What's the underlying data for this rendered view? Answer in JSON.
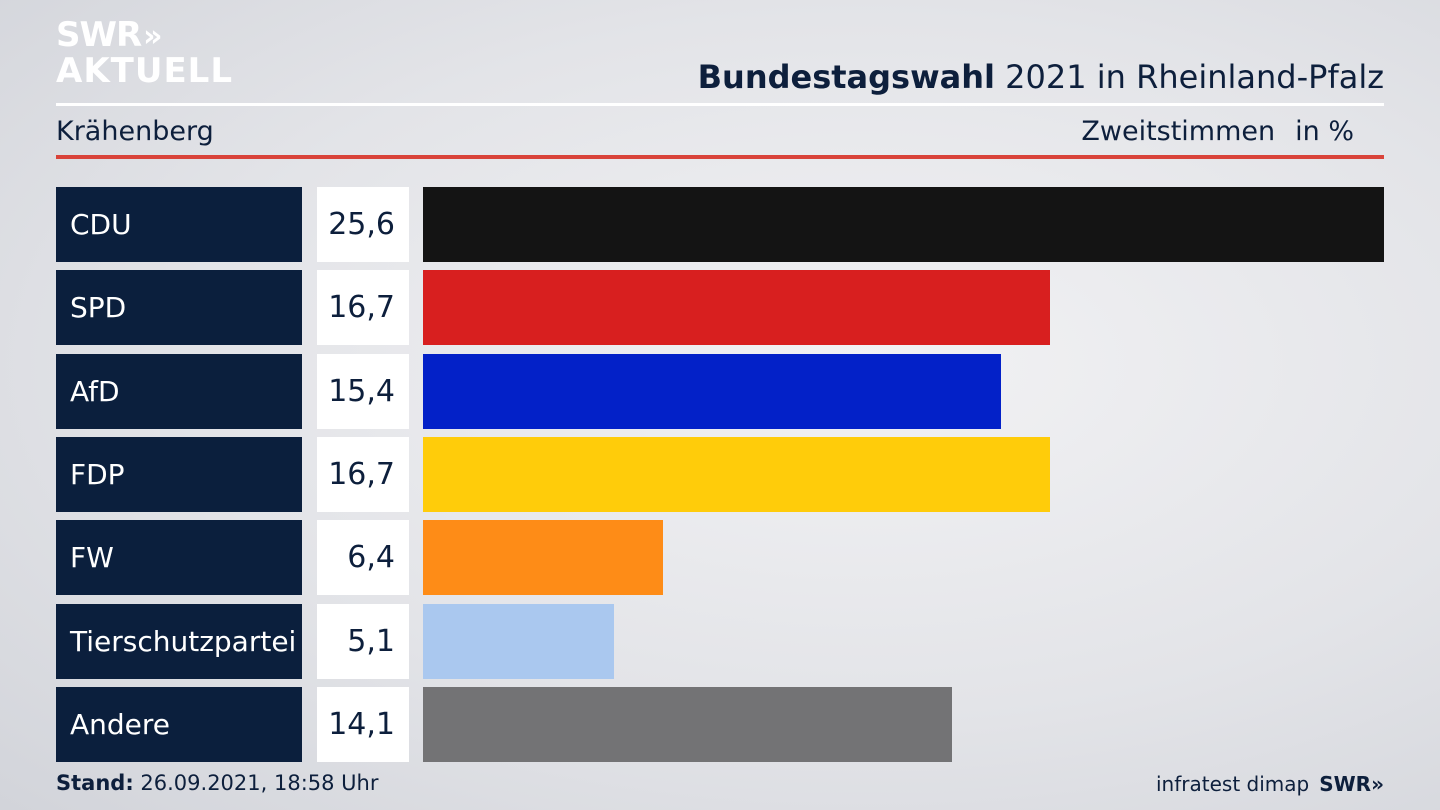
{
  "brand": {
    "logo_line1": "SWR",
    "logo_arrows": "»",
    "logo_line2": "AKTUELL",
    "footer_logo": "SWR»"
  },
  "header": {
    "title_bold": "Bundestagswahl",
    "title_rest": " 2021 in Rheinland-Pfalz",
    "location": "Krähenberg",
    "measure": "Zweitstimmen",
    "unit": "in %"
  },
  "footer": {
    "stand_label": "Stand:",
    "stand_value": " 26.09.2021, 18:58 Uhr",
    "source": "infratest dimap"
  },
  "chart_data": {
    "type": "bar",
    "orientation": "horizontal",
    "title": "Bundestagswahl 2021 in Rheinland-Pfalz",
    "subtitle": "Krähenberg",
    "measure": "Zweitstimmen",
    "unit": "in %",
    "categories": [
      "CDU",
      "SPD",
      "AfD",
      "FDP",
      "FW",
      "Tierschutzpartei",
      "Andere"
    ],
    "values": [
      25.6,
      16.7,
      15.4,
      16.7,
      6.4,
      5.1,
      14.1
    ],
    "value_labels": [
      "25,6",
      "16,7",
      "15,4",
      "16,7",
      "6,4",
      "5,1",
      "14,1"
    ],
    "colors": [
      "#141414",
      "#d81f1f",
      "#0321c8",
      "#ffcc0a",
      "#fe8c17",
      "#aac8ef",
      "#737375"
    ],
    "xlim": [
      0,
      25.6
    ],
    "grid": false,
    "legend": "none"
  }
}
